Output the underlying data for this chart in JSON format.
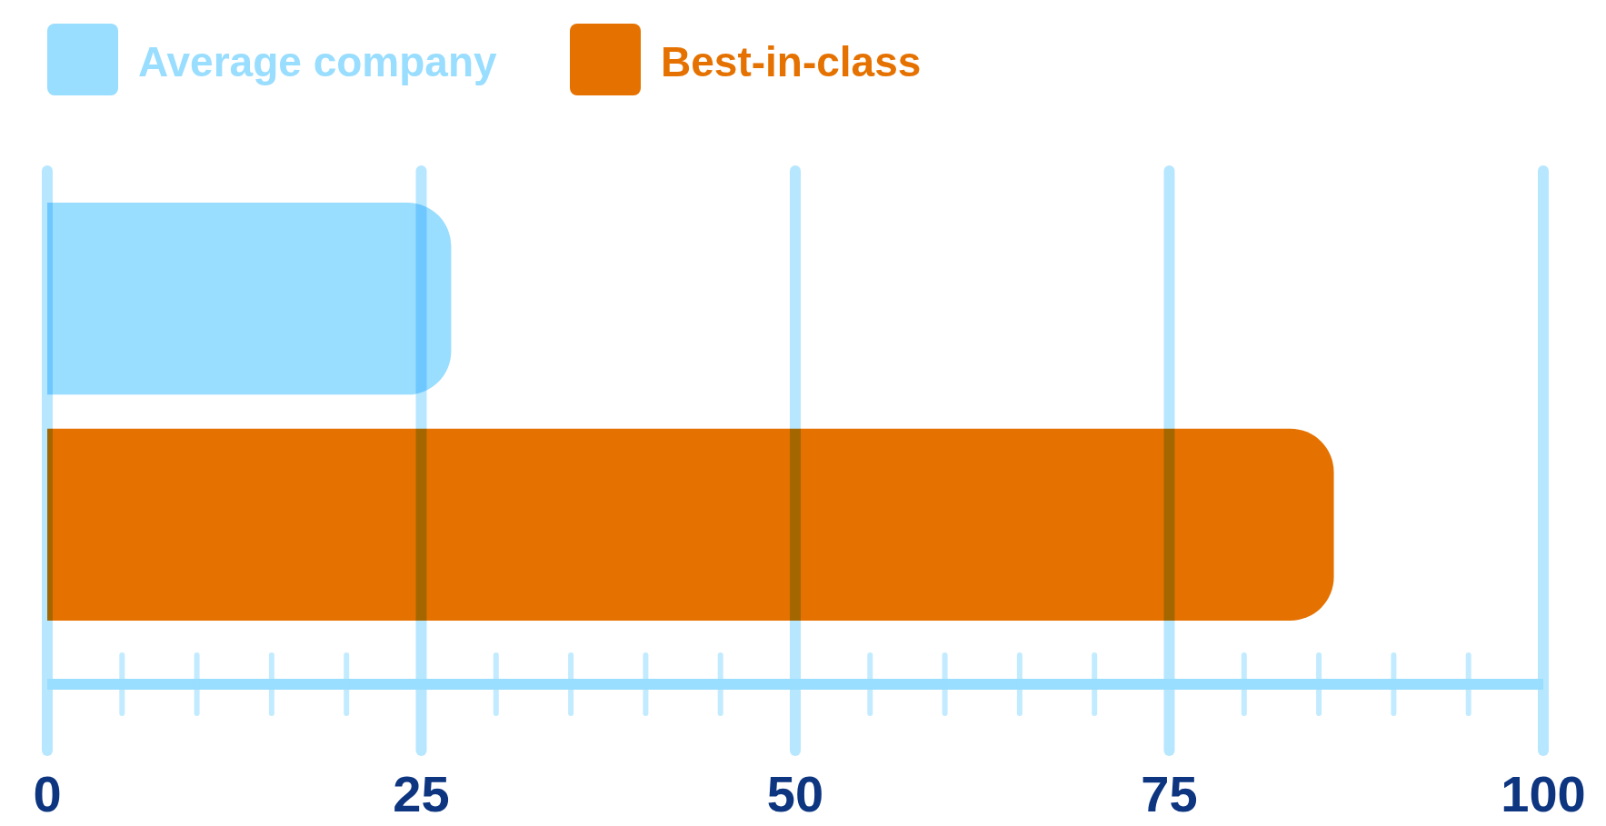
{
  "chart_data": {
    "type": "bar",
    "orientation": "horizontal",
    "categories": [
      null,
      null
    ],
    "series": [
      {
        "name": "Average company",
        "color": "#99ddff",
        "values": [
          27,
          null
        ]
      },
      {
        "name": "Best-in-class",
        "color": "#e57200",
        "values": [
          null,
          86
        ]
      }
    ],
    "xlim": [
      0,
      100
    ],
    "xticks": [
      0,
      25,
      50,
      75,
      100
    ],
    "grid": "x",
    "legend": "top left",
    "tick_labels": "x"
  }
}
